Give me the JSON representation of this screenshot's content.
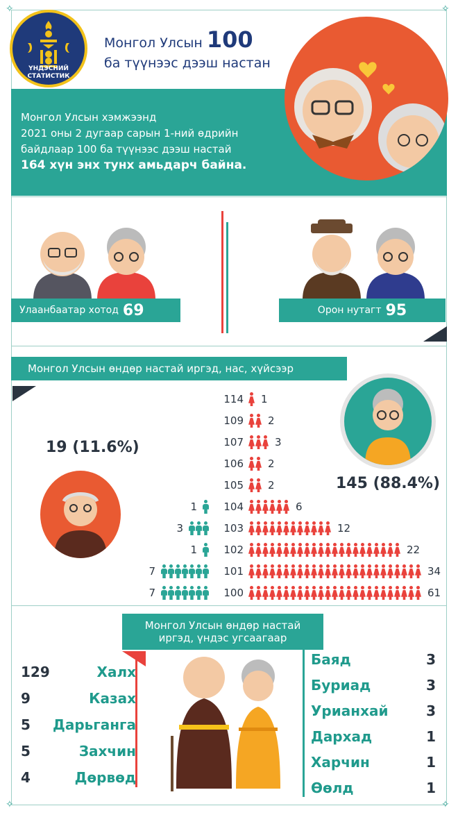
{
  "logo": {
    "line1": "ҮНДЭСНИЙ",
    "line2": "СТАТИСТИК"
  },
  "header": {
    "title_part1": "Монгол Улсын ",
    "title_number": "100",
    "title_part2": "ба түүнээс дээш настан"
  },
  "intro": {
    "line1": "Монгол Улсын хэмжээнд",
    "line2": "2021 оны 2 дугаар сарын 1-ний өдрийн",
    "line3": "байдлаар 100  ба   түүнээс дээш настай",
    "line4": "164 хүн энх тунх амьдарч байна."
  },
  "location": {
    "city_label": "Улаанбаатар хотод",
    "city_value": "69",
    "rural_label": "Орон нутагт",
    "rural_value": "95"
  },
  "age_sex": {
    "title": "Монгол Улсын өндөр настай иргэд, нас, хүйсээр",
    "male_summary": "19 (11.6%)",
    "female_summary": "145 (88.4%)",
    "rows": [
      {
        "age": "114",
        "female": 1,
        "male": null
      },
      {
        "age": "109",
        "female": 2,
        "male": null
      },
      {
        "age": "107",
        "female": 3,
        "male": null
      },
      {
        "age": "106",
        "female": 2,
        "male": null
      },
      {
        "age": "105",
        "female": 2,
        "male": null
      },
      {
        "age": "104",
        "female": 6,
        "male": 1
      },
      {
        "age": "103",
        "female": 12,
        "male": 3
      },
      {
        "age": "102",
        "female": 22,
        "male": 1
      },
      {
        "age": "101",
        "female": 34,
        "male": 7
      },
      {
        "age": "100",
        "female": 61,
        "male": 7
      }
    ]
  },
  "ethnic": {
    "title_line1": "Монгол Улсын өндөр настай",
    "title_line2": "иргэд, үндэс угсаагаар",
    "left": [
      {
        "count": "129",
        "name": "Халх"
      },
      {
        "count": "9",
        "name": "Казах"
      },
      {
        "count": "5",
        "name": "Дарьганга"
      },
      {
        "count": "5",
        "name": "Захчин"
      },
      {
        "count": "4",
        "name": "Дөрвөд"
      }
    ],
    "right": [
      {
        "name": "Баяд",
        "count": "3"
      },
      {
        "name": "Буриад",
        "count": "3"
      },
      {
        "name": "Урианхай",
        "count": "3"
      },
      {
        "name": "Дархад",
        "count": "1"
      },
      {
        "name": "Харчин",
        "count": "1"
      },
      {
        "name": "Өөлд",
        "count": "1"
      }
    ]
  },
  "colors": {
    "teal": "#2aa596",
    "red": "#e9423c",
    "navy": "#1f3a7a"
  }
}
